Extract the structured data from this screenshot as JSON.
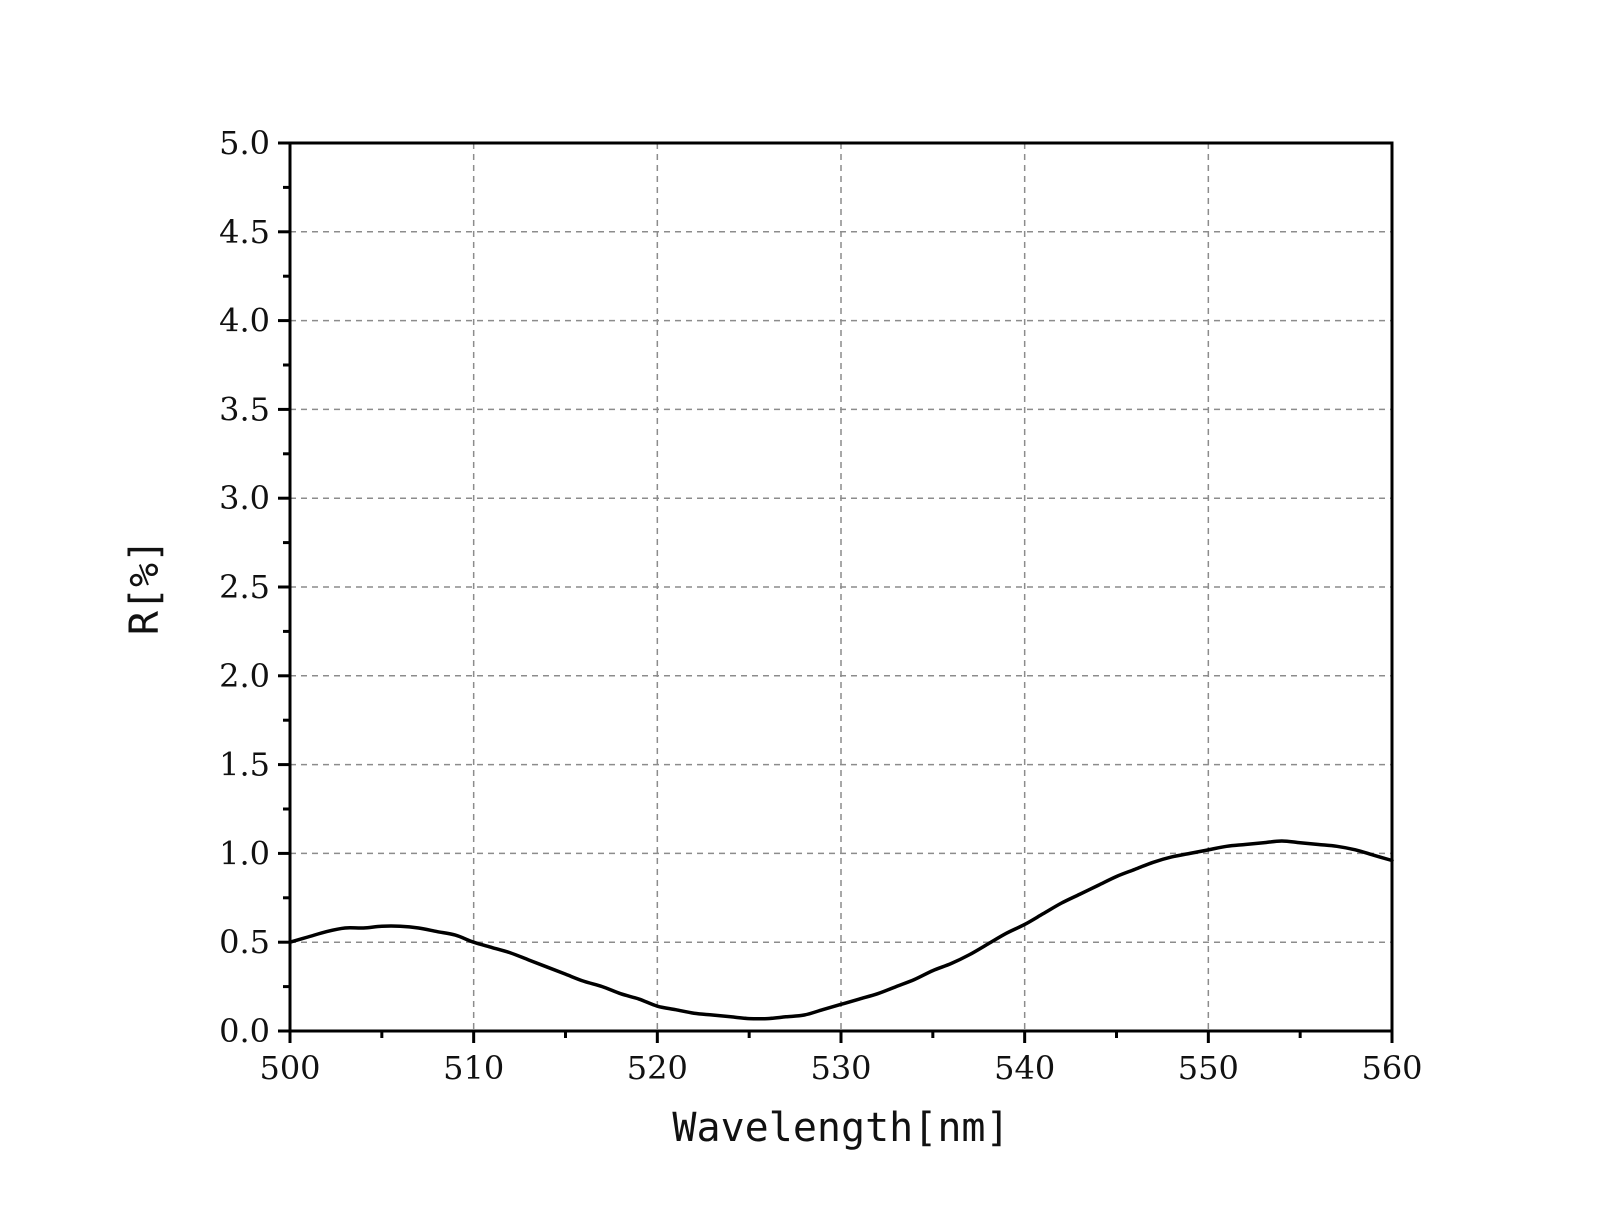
{
  "chart_data": {
    "type": "line",
    "title": "",
    "xlabel": "Wavelength[nm]",
    "ylabel": "R[%]",
    "xlim": [
      500,
      560
    ],
    "ylim": [
      0,
      5.0
    ],
    "xticks": [
      500,
      510,
      520,
      530,
      540,
      550,
      560
    ],
    "xtick_labels": [
      "500",
      "510",
      "520",
      "530",
      "540",
      "550",
      "560"
    ],
    "yticks": [
      0,
      0.5,
      1.0,
      1.5,
      2.0,
      2.5,
      3.0,
      3.5,
      4.0,
      4.5,
      5.0
    ],
    "ytick_labels": [
      "0.0",
      "0.5",
      "1.0",
      "1.5",
      "2.0",
      "2.5",
      "3.0",
      "3.5",
      "4.0",
      "4.5",
      "5.0"
    ],
    "grid": true,
    "legend": "none",
    "colors": {
      "line": "#000000",
      "grid": "#8c8c8c",
      "axes": "#000000"
    },
    "series": [
      {
        "x": [
          500,
          501,
          502,
          503,
          504,
          505,
          506,
          507,
          508,
          509,
          510,
          511,
          512,
          513,
          514,
          515,
          516,
          517,
          518,
          519,
          520,
          521,
          522,
          523,
          524,
          525,
          526,
          527,
          528,
          529,
          530,
          531,
          532,
          533,
          534,
          535,
          536,
          537,
          538,
          539,
          540,
          541,
          542,
          543,
          544,
          545,
          546,
          547,
          548,
          549,
          550,
          551,
          552,
          553,
          554,
          555,
          556,
          557,
          558,
          559,
          560
        ],
        "y": [
          0.5,
          0.53,
          0.56,
          0.58,
          0.58,
          0.59,
          0.59,
          0.58,
          0.56,
          0.54,
          0.5,
          0.47,
          0.44,
          0.4,
          0.36,
          0.32,
          0.28,
          0.25,
          0.21,
          0.18,
          0.14,
          0.12,
          0.1,
          0.09,
          0.08,
          0.07,
          0.07,
          0.08,
          0.09,
          0.12,
          0.15,
          0.18,
          0.21,
          0.25,
          0.29,
          0.34,
          0.38,
          0.43,
          0.49,
          0.55,
          0.6,
          0.66,
          0.72,
          0.77,
          0.82,
          0.87,
          0.91,
          0.95,
          0.98,
          1.0,
          1.02,
          1.04,
          1.05,
          1.06,
          1.07,
          1.06,
          1.05,
          1.04,
          1.02,
          0.99,
          0.96
        ]
      }
    ]
  }
}
